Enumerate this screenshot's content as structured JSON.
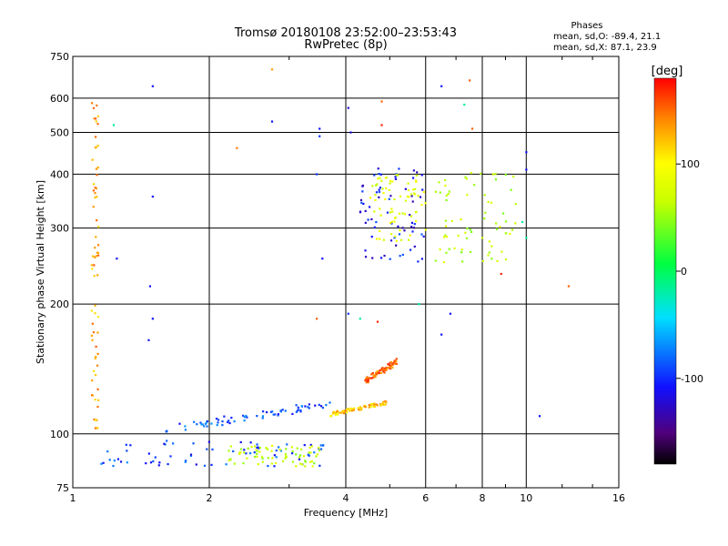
{
  "chart_data": {
    "type": "scatter",
    "title": "Tromsø 20180108 23:52:00–23:53:43",
    "subtitle": "RwPretec (8p)",
    "xlabel": "Frequency [MHz]",
    "ylabel": "Stationary phase Virtual Height [km]",
    "x_scale": "log",
    "y_scale": "log",
    "xlim": [
      1,
      16
    ],
    "ylim": [
      75,
      750
    ],
    "x_ticks": [
      1,
      2,
      4,
      6,
      8,
      10,
      16
    ],
    "y_ticks": [
      75,
      100,
      200,
      300,
      400,
      500,
      600,
      750
    ],
    "grid": true,
    "stats": {
      "heading": "Phases",
      "line_o": "mean, sd,O: -89.4, 21.1",
      "line_x": "mean, sd,X:  87.1, 23.9"
    },
    "colorbar": {
      "label": "[deg]",
      "range": [
        -180,
        180
      ],
      "ticks": [
        100,
        0,
        -100
      ],
      "colormap": "rainbow"
    },
    "clusters": [
      {
        "name": "low-band trace",
        "x_range": [
          1.6,
          3.7
        ],
        "y_range": [
          100,
          120
        ],
        "phase": -90
      },
      {
        "name": "lower echo band",
        "x_range": [
          1.15,
          3.6
        ],
        "y_range": [
          84,
          97
        ],
        "phase": -95
      },
      {
        "name": "echo band green/yellow",
        "x_range": [
          2.2,
          3.5
        ],
        "y_range": [
          84,
          94
        ],
        "phase": 60
      },
      {
        "name": "upper trace",
        "x_range": [
          3.7,
          5.0
        ],
        "y_range": [
          110,
          120
        ],
        "phase": 120
      },
      {
        "name": "rising segment",
        "x_range": [
          4.4,
          5.2
        ],
        "y_range": [
          130,
          150
        ],
        "phase": 150
      },
      {
        "name": "F-region cluster",
        "x_range": [
          4.3,
          6.0
        ],
        "y_range": [
          250,
          420
        ],
        "phase": -110
      },
      {
        "name": "F-region cluster yellow",
        "x_range": [
          4.5,
          6.0
        ],
        "y_range": [
          280,
          400
        ],
        "phase": 80
      },
      {
        "name": "F2 trace",
        "x_range": [
          6.3,
          9.5
        ],
        "y_range": [
          250,
          410
        ],
        "phase": 60
      },
      {
        "name": "vertical stack at 1.1 MHz",
        "x_range": [
          1.1,
          1.14
        ],
        "y_range": [
          100,
          600
        ],
        "phase": 130
      }
    ],
    "sparse_points": [
      {
        "x": 1.5,
        "y": 640,
        "phase": -110
      },
      {
        "x": 1.5,
        "y": 355,
        "phase": -110
      },
      {
        "x": 1.48,
        "y": 220,
        "phase": -110
      },
      {
        "x": 1.5,
        "y": 185,
        "phase": -110
      },
      {
        "x": 1.47,
        "y": 165,
        "phase": -110
      },
      {
        "x": 1.25,
        "y": 255,
        "phase": -110
      },
      {
        "x": 1.23,
        "y": 520,
        "phase": -20
      },
      {
        "x": 2.75,
        "y": 700,
        "phase": 130
      },
      {
        "x": 2.75,
        "y": 530,
        "phase": -110
      },
      {
        "x": 2.3,
        "y": 460,
        "phase": 140
      },
      {
        "x": 3.5,
        "y": 510,
        "phase": -110
      },
      {
        "x": 3.5,
        "y": 490,
        "phase": -100
      },
      {
        "x": 3.45,
        "y": 400,
        "phase": -100
      },
      {
        "x": 3.55,
        "y": 255,
        "phase": -110
      },
      {
        "x": 3.45,
        "y": 185,
        "phase": 150
      },
      {
        "x": 4.05,
        "y": 570,
        "phase": -120
      },
      {
        "x": 4.1,
        "y": 500,
        "phase": -120
      },
      {
        "x": 4.05,
        "y": 190,
        "phase": -100
      },
      {
        "x": 4.3,
        "y": 185,
        "phase": -20
      },
      {
        "x": 4.7,
        "y": 182,
        "phase": 170
      },
      {
        "x": 4.8,
        "y": 590,
        "phase": 150
      },
      {
        "x": 4.8,
        "y": 520,
        "phase": 170
      },
      {
        "x": 5.8,
        "y": 200,
        "phase": -20
      },
      {
        "x": 6.5,
        "y": 640,
        "phase": -110
      },
      {
        "x": 6.5,
        "y": 170,
        "phase": -110
      },
      {
        "x": 6.8,
        "y": 190,
        "phase": -110
      },
      {
        "x": 7.3,
        "y": 580,
        "phase": -20
      },
      {
        "x": 7.5,
        "y": 660,
        "phase": 150
      },
      {
        "x": 7.6,
        "y": 510,
        "phase": 150
      },
      {
        "x": 9.8,
        "y": 310,
        "phase": -20
      },
      {
        "x": 10.0,
        "y": 285,
        "phase": -20
      },
      {
        "x": 10.0,
        "y": 450,
        "phase": -110
      },
      {
        "x": 10.0,
        "y": 410,
        "phase": -110
      },
      {
        "x": 8.8,
        "y": 235,
        "phase": 170
      },
      {
        "x": 12.4,
        "y": 220,
        "phase": 150
      },
      {
        "x": 10.7,
        "y": 110,
        "phase": -110
      }
    ]
  }
}
